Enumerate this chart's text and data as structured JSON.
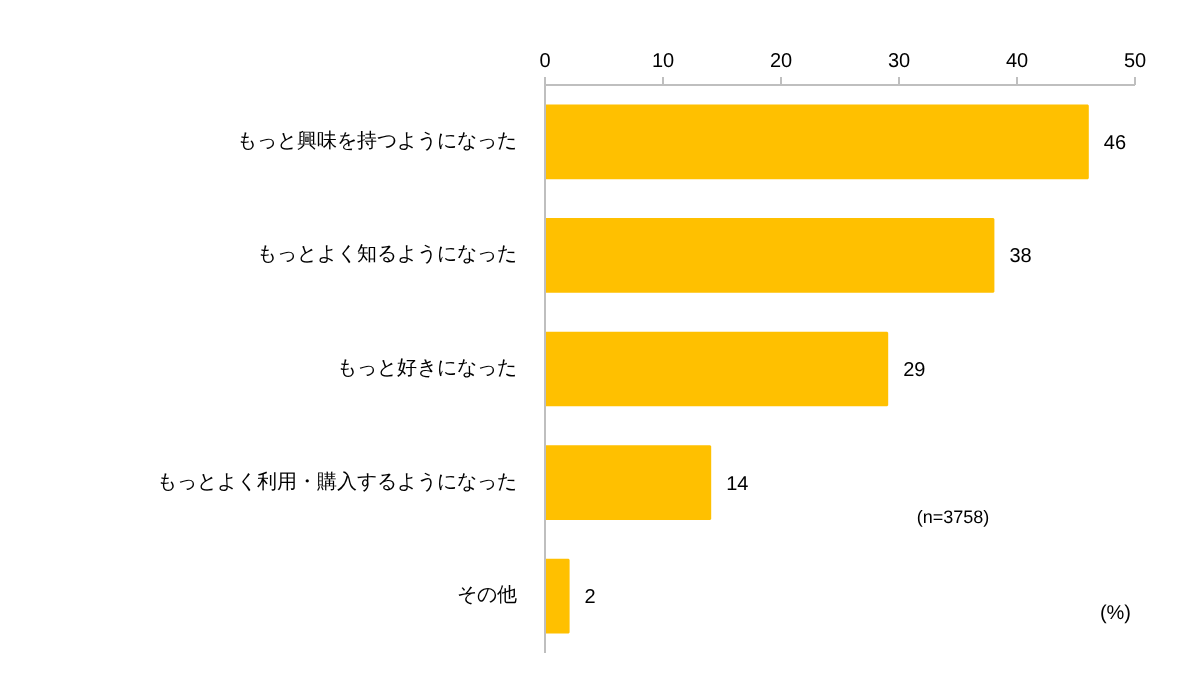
{
  "chart_data": {
    "type": "bar",
    "orientation": "horizontal",
    "xlabel": "(%)",
    "categories": [
      "もっと興味を持つようになった",
      "もっとよく知るようになった",
      "もっと好きになった",
      "もっとよく利用・購入するようになった",
      "その他"
    ],
    "values": [
      46,
      38,
      29,
      14,
      2
    ],
    "color": "#ffc000",
    "xlim": [
      0,
      50
    ],
    "xticks": [
      0,
      10,
      20,
      30,
      40,
      50
    ],
    "data_labels": true,
    "grid": false,
    "annotations": [
      "(n=3758)"
    ]
  }
}
